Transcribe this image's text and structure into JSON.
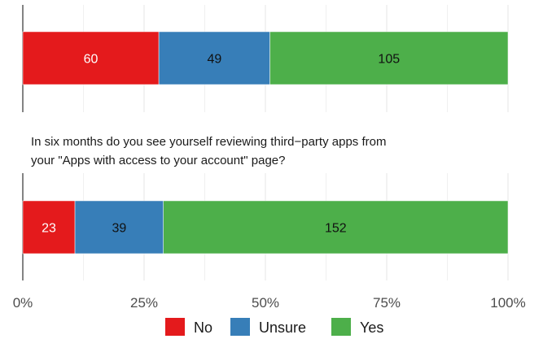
{
  "chart_data": {
    "type": "bar",
    "orientation": "horizontal-stacked-100%",
    "grid": true,
    "legend": {
      "placement": "bottom",
      "entries": [
        {
          "label": "No",
          "color": "#e41a1c"
        },
        {
          "label": "Unsure",
          "color": "#377eb8"
        },
        {
          "label": "Yes",
          "color": "#4daf4a"
        }
      ]
    },
    "x_axis": {
      "range": [
        0,
        100
      ],
      "ticks": [
        0,
        25,
        50,
        75,
        100
      ],
      "tick_labels": [
        "0%",
        "25%",
        "50%",
        "75%",
        "100%"
      ]
    },
    "panels": [
      {
        "title": "",
        "series": [
          {
            "name": "No",
            "value": 60
          },
          {
            "name": "Unsure",
            "value": 49
          },
          {
            "name": "Yes",
            "value": 105
          }
        ]
      },
      {
        "title_lines": [
          "In six months do you see yourself reviewing third−party apps from",
          "your \"Apps with access to your account\" page?"
        ],
        "series": [
          {
            "name": "No",
            "value": 23
          },
          {
            "name": "Unsure",
            "value": 39
          },
          {
            "name": "Yes",
            "value": 152
          }
        ]
      }
    ]
  }
}
